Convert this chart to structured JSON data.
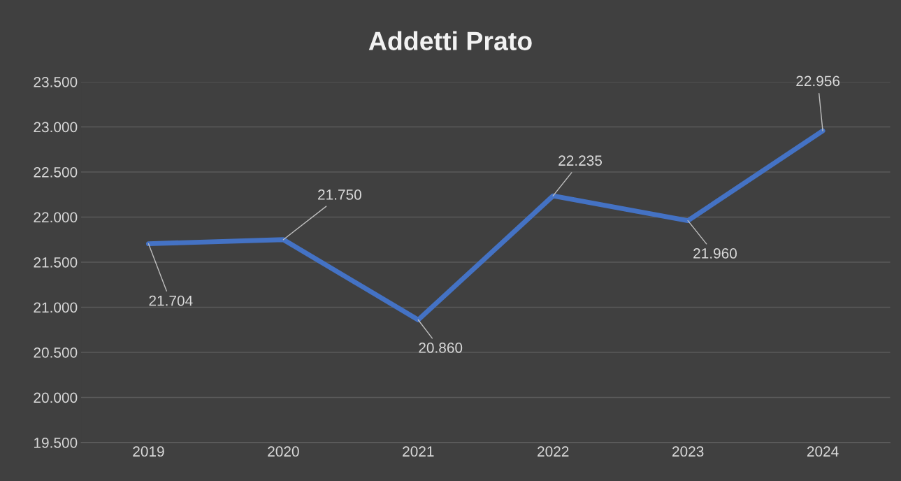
{
  "chart_data": {
    "type": "line",
    "title": "Addetti Prato",
    "categories": [
      "2019",
      "2020",
      "2021",
      "2022",
      "2023",
      "2024"
    ],
    "series": [
      {
        "color": "#4472c4",
        "values": [
          21704,
          21750,
          20860,
          22235,
          21960,
          22956
        ],
        "value_labels": [
          "21.704",
          "21.750",
          "20.860",
          "22.235",
          "21.960",
          "22.956"
        ]
      }
    ],
    "ylim": [
      19500,
      23500
    ],
    "yticks": [
      {
        "value": 19500,
        "label": "19.500"
      },
      {
        "value": 20000,
        "label": "20.000"
      },
      {
        "value": 20500,
        "label": "20.500"
      },
      {
        "value": 21000,
        "label": "21.000"
      },
      {
        "value": 21500,
        "label": "21.500"
      },
      {
        "value": 22000,
        "label": "22.000"
      },
      {
        "value": 22500,
        "label": "22.500"
      },
      {
        "value": 23000,
        "label": "23.000"
      },
      {
        "value": 23500,
        "label": "23.500"
      }
    ],
    "grid": "y",
    "legend": false,
    "marker": "none",
    "line_style": "solid"
  }
}
